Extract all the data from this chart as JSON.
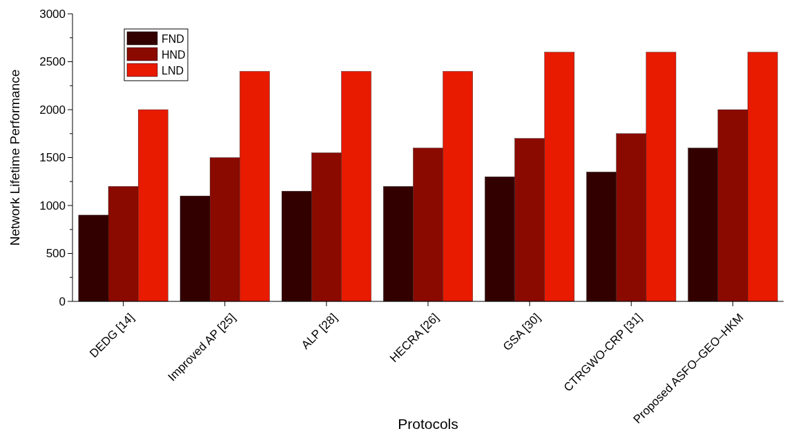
{
  "chart_data": {
    "type": "bar",
    "xlabel": "Protocols",
    "ylabel": "Network Lifetime Performance",
    "categories": [
      "DEDG [14]",
      "Improved AP [25]",
      "ALP [28]",
      "HECRA [26]",
      "GSA [30]",
      "CTRGWO-CRP [31]",
      "Proposed ASFO–GEO–HKM"
    ],
    "series": [
      {
        "name": "FND",
        "color": "#330000",
        "values": [
          900,
          1100,
          1150,
          1200,
          1300,
          1350,
          1600
        ]
      },
      {
        "name": "HND",
        "color": "#8b0a00",
        "values": [
          1200,
          1500,
          1550,
          1600,
          1700,
          1750,
          2000
        ]
      },
      {
        "name": "LND",
        "color": "#e81a00",
        "values": [
          2000,
          2400,
          2400,
          2400,
          2600,
          2600,
          2600
        ]
      }
    ],
    "ylim": [
      0,
      3000
    ],
    "yticks": [
      0,
      {
        "value": 250,
        "label": null
      },
      500,
      {
        "value": 750,
        "label": null
      },
      1000,
      {
        "value": 1250,
        "label": null
      },
      1500,
      {
        "value": 1750,
        "label": null
      },
      2000,
      {
        "value": 2250,
        "label": null
      },
      2500,
      {
        "value": 2750,
        "label": null
      },
      3000
    ],
    "grid": false,
    "legend": "top left"
  }
}
